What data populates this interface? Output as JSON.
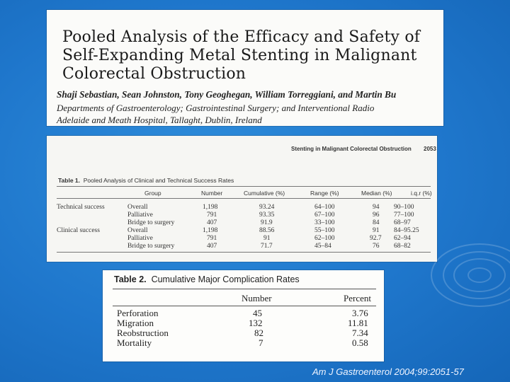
{
  "article": {
    "title_lines": [
      "Pooled Analysis of the Efficacy and Safety of",
      "Self-Expanding Metal Stenting in Malignant",
      "Colorectal Obstruction"
    ],
    "authors": "Shaji Sebastian, Sean Johnston, Tony Geoghegan, William Torreggiani, and Martin Bu",
    "departments": "Departments of Gastroenterology; Gastrointestinal Surgery; and Interventional Radio",
    "institution": "Adelaide and Meath Hospital, Tallaght, Dublin, Ireland"
  },
  "table1": {
    "running_head": "Stenting in Malignant Colorectal Obstruction",
    "page_number": "2053",
    "label": "Table 1.",
    "title": "Pooled Analysis of Clinical and Technical Success Rates",
    "headers": [
      "Group",
      "Number",
      "Cumulative (%)",
      "Range (%)",
      "Median (%)",
      "i.q.r (%)"
    ],
    "rows": [
      {
        "section": "Technical success",
        "group": "Overall",
        "number": "1,198",
        "cumulative": "93.24",
        "range": "64–100",
        "median": "94",
        "iqr": "90–100"
      },
      {
        "section": "",
        "group": "Palliative",
        "number": "791",
        "cumulative": "93.35",
        "range": "67–100",
        "median": "96",
        "iqr": "77–100"
      },
      {
        "section": "",
        "group": "Bridge to surgery",
        "number": "407",
        "cumulative": "91.9",
        "range": "33–100",
        "median": "84",
        "iqr": "68–97"
      },
      {
        "section": "Clinical success",
        "group": "Overall",
        "number": "1,198",
        "cumulative": "88.56",
        "range": "55–100",
        "median": "91",
        "iqr": "84–95.25"
      },
      {
        "section": "",
        "group": "Palliative",
        "number": "791",
        "cumulative": "91",
        "range": "62–100",
        "median": "92.7",
        "iqr": "62–94"
      },
      {
        "section": "",
        "group": "Bridge to surgery",
        "number": "407",
        "cumulative": "71.7",
        "range": "45–84",
        "median": "76",
        "iqr": "68–82"
      }
    ]
  },
  "table2": {
    "label": "Table 2.",
    "title": "Cumulative Major Complication Rates",
    "headers": [
      "Number",
      "Percent"
    ],
    "rows": [
      {
        "label": "Perforation",
        "number": "45",
        "percent": "3.76"
      },
      {
        "label": "Migration",
        "number": "132",
        "percent": "11.81"
      },
      {
        "label": "Reobstruction",
        "number": "82",
        "percent": "7.34"
      },
      {
        "label": "Mortality",
        "number": "7",
        "percent": "0.58"
      }
    ]
  },
  "citation": "Am J Gastroenterol 2004;99:2051-57",
  "colors": {
    "background": "#1f77cc",
    "citation_text": "#f0f4ff"
  }
}
